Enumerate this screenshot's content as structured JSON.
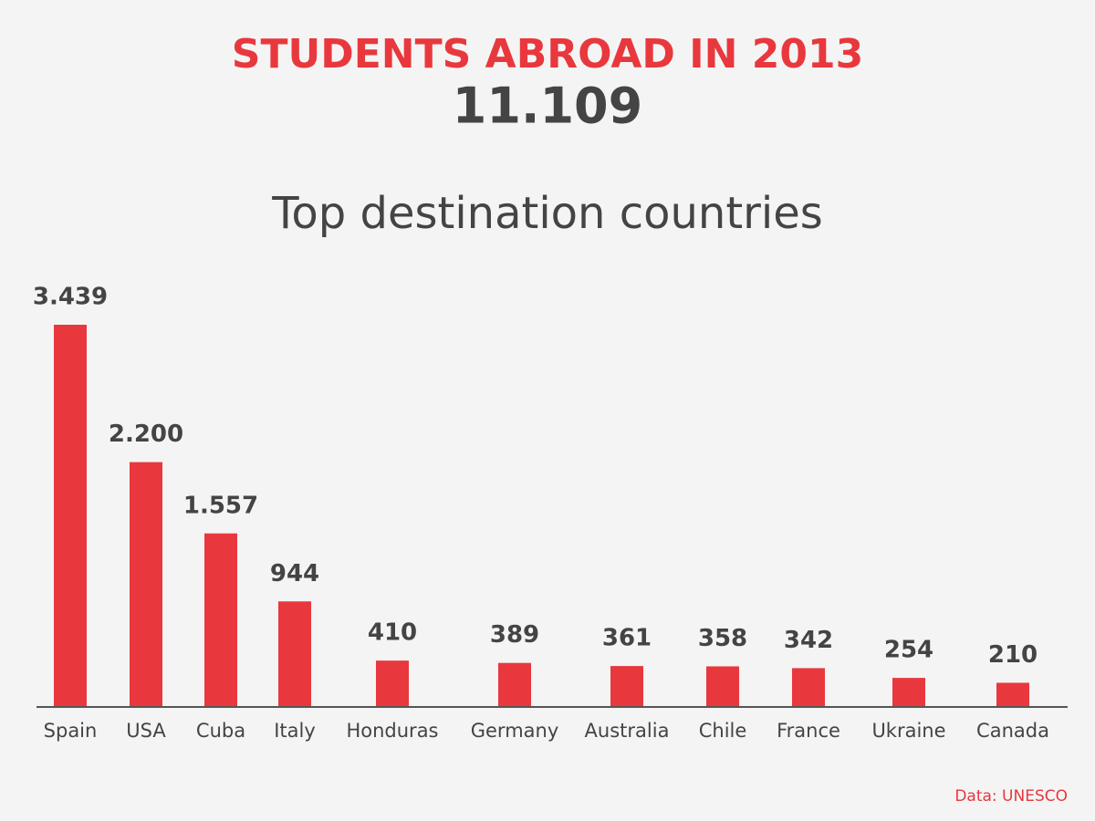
{
  "chart_data": {
    "type": "bar",
    "title": "STUDENTS ABROAD IN 2013",
    "subtitle": "11.109",
    "chart_title": "Top destination countries",
    "source": "Data: UNESCO",
    "categories": [
      "Spain",
      "USA",
      "Cuba",
      "Italy",
      "Honduras",
      "Germany",
      "Australia",
      "Chile",
      "France",
      "Ukraine",
      "Canada"
    ],
    "values": [
      3439,
      2200,
      1557,
      944,
      410,
      389,
      361,
      358,
      342,
      254,
      210
    ],
    "value_labels": [
      "3.439",
      "2.200",
      "1.557",
      "944",
      "410",
      "389",
      "361",
      "358",
      "342",
      "254",
      "210"
    ],
    "color": "#e8383d"
  }
}
